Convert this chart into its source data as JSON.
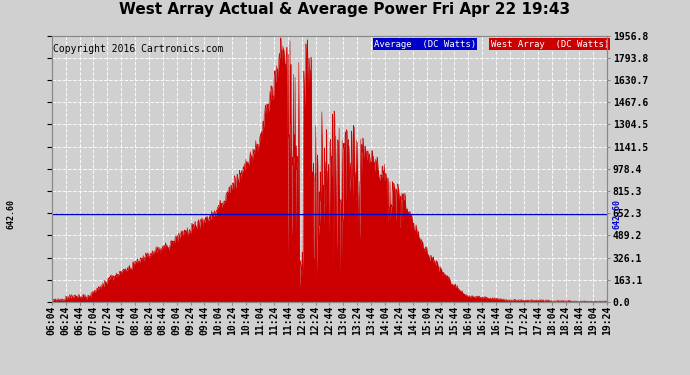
{
  "title": "West Array Actual & Average Power Fri Apr 22 19:43",
  "copyright": "Copyright 2016 Cartronics.com",
  "average_value": 642.6,
  "y_ticks": [
    0.0,
    163.1,
    326.1,
    489.2,
    652.3,
    815.3,
    978.4,
    1141.5,
    1304.5,
    1467.6,
    1630.7,
    1793.8,
    1956.8
  ],
  "ymax": 1956.8,
  "ymin": 0.0,
  "bg_color": "#d0d0d0",
  "plot_bg_color": "#d0d0d0",
  "grid_color": "#ffffff",
  "fill_color": "#cc0000",
  "line_color": "#cc0000",
  "avg_line_color": "#0000cc",
  "legend_avg_bg": "#0000cc",
  "legend_west_bg": "#cc0000",
  "legend_avg_text": "Average  (DC Watts)",
  "legend_west_text": "West Array  (DC Watts)",
  "x_tick_labels": [
    "06:04",
    "06:24",
    "06:44",
    "07:04",
    "07:24",
    "07:44",
    "08:04",
    "08:24",
    "08:44",
    "09:04",
    "09:24",
    "09:44",
    "10:04",
    "10:24",
    "10:44",
    "11:04",
    "11:24",
    "11:44",
    "12:04",
    "12:24",
    "12:44",
    "13:04",
    "13:24",
    "13:44",
    "14:04",
    "14:24",
    "14:44",
    "15:04",
    "15:24",
    "15:44",
    "16:04",
    "16:24",
    "16:44",
    "17:04",
    "17:24",
    "17:44",
    "18:04",
    "18:24",
    "18:44",
    "19:04",
    "19:24"
  ],
  "title_fontsize": 11,
  "tick_fontsize": 7,
  "copyright_fontsize": 7
}
